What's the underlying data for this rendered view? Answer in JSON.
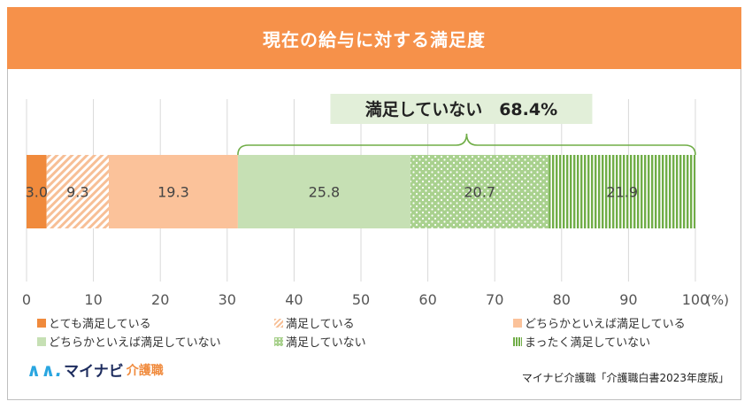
{
  "title": "現在の給与に対する満足度",
  "chart_data": {
    "type": "stacked-bar-horizontal",
    "title": "現在の給与に対する満足度",
    "xlim": [
      0,
      100
    ],
    "x_ticks": [
      "0",
      "10",
      "20",
      "30",
      "40",
      "50",
      "60",
      "70",
      "80",
      "90",
      "100"
    ],
    "x_unit": "(%)",
    "grid": true,
    "legend_position": "bottom",
    "series": [
      {
        "name": "とても満足している",
        "value": 3.0,
        "label": "3.0",
        "color": "#f08a3c",
        "pattern": "solid"
      },
      {
        "name": "満足している",
        "value": 9.3,
        "label": "9.3",
        "color": "#f7bf96",
        "pattern": "diagonal"
      },
      {
        "name": "どちらかといえば満足している",
        "value": 19.3,
        "label": "19.3",
        "color": "#fbc29a",
        "pattern": "solid"
      },
      {
        "name": "どちらかといえば満足していない",
        "value": 25.8,
        "label": "25.8",
        "color": "#c6e0b4",
        "pattern": "solid"
      },
      {
        "name": "満足していない",
        "value": 20.7,
        "label": "20.7",
        "color": "#a9d18e",
        "pattern": "dots"
      },
      {
        "name": "まったく満足していない",
        "value": 21.9,
        "label": "21.9",
        "color": "#70ad47",
        "pattern": "vertical"
      }
    ],
    "annotation": {
      "text": "満足していない　68.4%",
      "from": 31.6,
      "to": 100
    }
  },
  "footer": {
    "logo_mark": "∧∧.",
    "logo_name": "マイナビ",
    "logo_sub": "介護職",
    "source": "マイナビ介護職「介護職白書2023年度版」"
  }
}
